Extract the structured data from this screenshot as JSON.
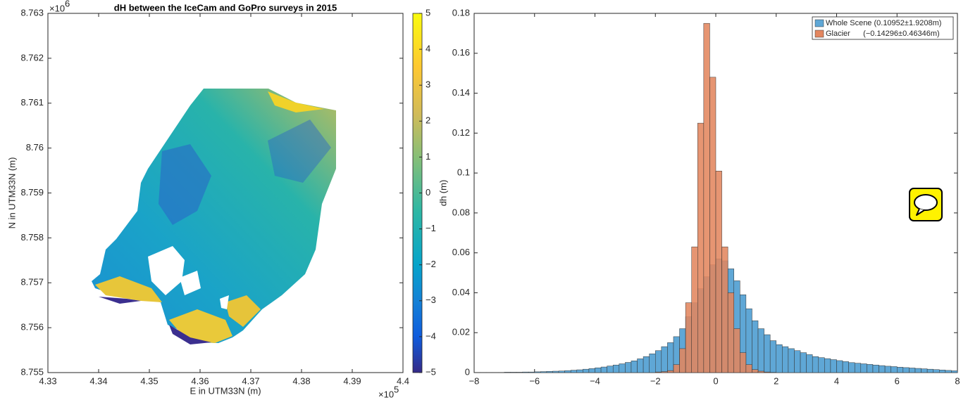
{
  "chart_data": [
    {
      "type": "map",
      "title": "dH between the IceCam and GoPro surveys in 2015",
      "x_label": "E in UTM33N (m)",
      "y_label": "N in UTM33N (m)",
      "x_scale_base": "×10",
      "x_scale_exponent": "5",
      "y_scale_base": "×10",
      "y_scale_exponent": "6",
      "xlim": [
        4.33,
        4.4
      ],
      "xticks": [
        4.33,
        4.34,
        4.35,
        4.36,
        4.37,
        4.38,
        4.39,
        4.4
      ],
      "ylim": [
        8.755,
        8.763
      ],
      "yticks": [
        8.755,
        8.756,
        8.757,
        8.758,
        8.759,
        8.76,
        8.761,
        8.762,
        8.763
      ],
      "colorbar": {
        "lim": [
          -5,
          5
        ],
        "ticks": [
          {
            "value": -5,
            "label": "−5"
          },
          {
            "value": -4,
            "label": "−4"
          },
          {
            "value": -3,
            "label": "−3"
          },
          {
            "value": -2,
            "label": "−2"
          },
          {
            "value": -1,
            "label": "−1"
          },
          0,
          1,
          2,
          3,
          4,
          5
        ]
      }
    },
    {
      "type": "histogram",
      "y_label": "dh (m)",
      "xlim": [
        -8,
        8
      ],
      "xticks": [
        {
          "value": -8,
          "label": "−8"
        },
        {
          "value": -6,
          "label": "−6"
        },
        {
          "value": -4,
          "label": "−4"
        },
        {
          "value": -2,
          "label": "−2"
        },
        0,
        2,
        4,
        6,
        8
      ],
      "ylim": [
        0,
        0.18
      ],
      "yticks": [
        0,
        0.02,
        0.04,
        0.06,
        0.08,
        0.1,
        0.12,
        0.14,
        0.16,
        0.18
      ],
      "legend": "top-right",
      "bins": [
        -8,
        -7.8,
        -7.6,
        -7.4,
        -7.2,
        -7,
        -6.8,
        -6.6,
        -6.4,
        -6.2,
        -6,
        -5.8,
        -5.6,
        -5.4,
        -5.2,
        -5,
        -4.8,
        -4.6,
        -4.4,
        -4.2,
        -4,
        -3.8,
        -3.6,
        -3.4,
        -3.2,
        -3,
        -2.8,
        -2.6,
        -2.4,
        -2.2,
        -2,
        -1.8,
        -1.6,
        -1.4,
        -1.2,
        -1,
        -0.8,
        -0.6,
        -0.4,
        -0.2,
        0,
        0.2,
        0.4,
        0.6,
        0.8,
        1,
        1.2,
        1.4,
        1.6,
        1.8,
        2,
        2.2,
        2.4,
        2.6,
        2.8,
        3,
        3.2,
        3.4,
        3.6,
        3.8,
        4,
        4.2,
        4.4,
        4.6,
        4.8,
        5,
        5.2,
        5.4,
        5.6,
        5.8,
        6,
        6.2,
        6.4,
        6.6,
        6.8,
        7,
        7.2,
        7.4,
        7.6,
        7.8,
        8
      ],
      "series": [
        {
          "name": "Whole Scene (0.10952±1.9208m)",
          "color": "#5fa7d6",
          "values": [
            0.0001,
            0.0001,
            0.0001,
            0.0001,
            0.0001,
            0.0002,
            0.0002,
            0.0002,
            0.0003,
            0.0003,
            0.0004,
            0.0005,
            0.0006,
            0.0007,
            0.0008,
            0.001,
            0.0012,
            0.0014,
            0.0017,
            0.002,
            0.0024,
            0.0028,
            0.0033,
            0.0038,
            0.0044,
            0.0051,
            0.0059,
            0.0069,
            0.008,
            0.0094,
            0.011,
            0.013,
            0.015,
            0.018,
            0.022,
            0.028,
            0.035,
            0.042,
            0.048,
            0.054,
            0.057,
            0.056,
            0.052,
            0.046,
            0.039,
            0.032,
            0.026,
            0.022,
            0.019,
            0.016,
            0.014,
            0.013,
            0.012,
            0.011,
            0.01,
            0.009,
            0.008,
            0.0075,
            0.007,
            0.0065,
            0.006,
            0.0055,
            0.005,
            0.0047,
            0.0044,
            0.0041,
            0.0038,
            0.0035,
            0.0032,
            0.003,
            0.0027,
            0.0025,
            0.0023,
            0.0021,
            0.0019,
            0.0017,
            0.0015,
            0.0013,
            0.0011,
            0.0009
          ]
        },
        {
          "name": "Glacier      (−0.14296±0.46346m)",
          "color": "#e3865f",
          "values": [
            0,
            0,
            0,
            0,
            0,
            0,
            0,
            0,
            0,
            0,
            0,
            0,
            0,
            0,
            0,
            0,
            0,
            0,
            0,
            0,
            0,
            0,
            0,
            0,
            0,
            0,
            0,
            0,
            0,
            0,
            0.0003,
            0.0005,
            0.001,
            0.004,
            0.012,
            0.035,
            0.063,
            0.125,
            0.175,
            0.148,
            0.101,
            0.063,
            0.04,
            0.022,
            0.01,
            0.004,
            0.0015,
            0.0007,
            0.0003,
            0.0001,
            0,
            0,
            0,
            0,
            0,
            0,
            0,
            0,
            0,
            0,
            0,
            0,
            0,
            0,
            0,
            0,
            0,
            0,
            0,
            0,
            0,
            0,
            0,
            0,
            0,
            0,
            0,
            0,
            0,
            0
          ]
        }
      ]
    }
  ]
}
